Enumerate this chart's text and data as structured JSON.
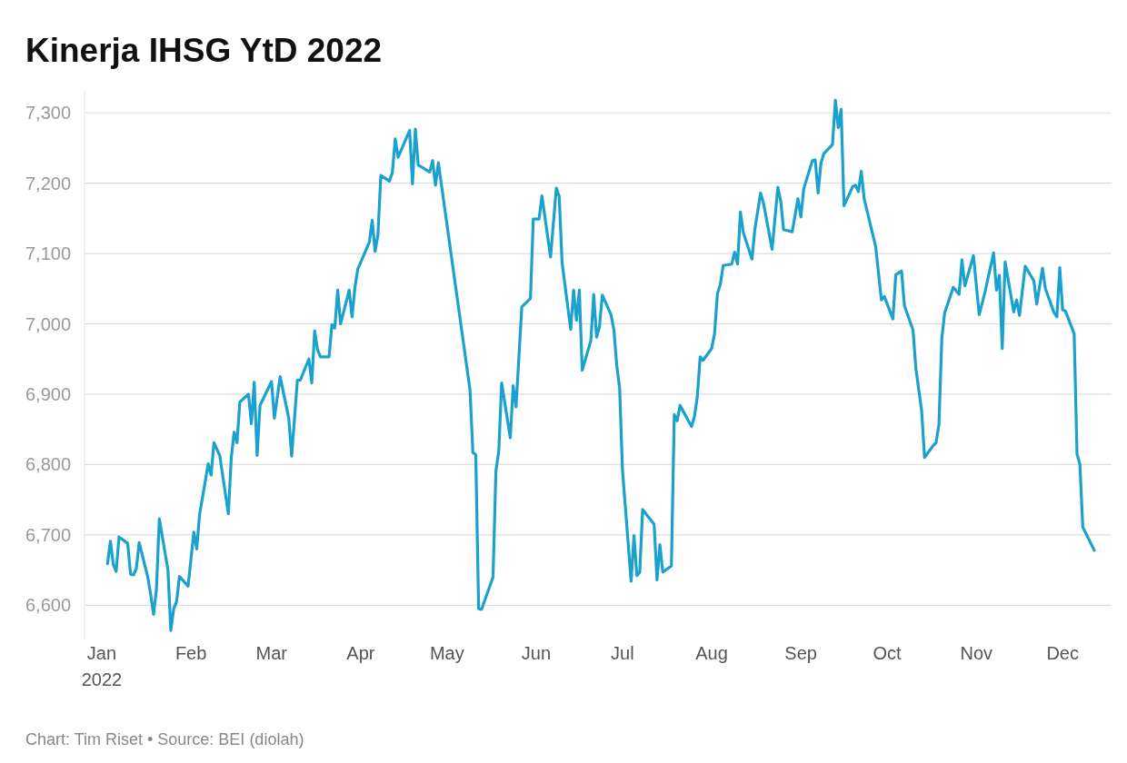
{
  "chart_data": {
    "type": "line",
    "title": "Kinerja IHSG YtD 2022",
    "annotations": [
      "Chart: Tim Riset • Source: BEI (diolah)"
    ],
    "x": [
      "2022-01-03",
      "2022-01-04",
      "2022-01-05",
      "2022-01-06",
      "2022-01-07",
      "2022-01-10",
      "2022-01-11",
      "2022-01-12",
      "2022-01-13",
      "2022-01-14",
      "2022-01-17",
      "2022-01-18",
      "2022-01-19",
      "2022-01-20",
      "2022-01-21",
      "2022-01-24",
      "2022-01-25",
      "2022-01-26",
      "2022-01-27",
      "2022-01-28",
      "2022-01-31",
      "2022-02-02",
      "2022-02-03",
      "2022-02-04",
      "2022-02-07",
      "2022-02-08",
      "2022-02-09",
      "2022-02-11",
      "2022-02-14",
      "2022-02-15",
      "2022-02-16",
      "2022-02-17",
      "2022-02-18",
      "2022-02-21",
      "2022-02-22",
      "2022-02-23",
      "2022-02-24",
      "2022-02-25",
      "2022-03-01",
      "2022-03-02",
      "2022-03-04",
      "2022-03-07",
      "2022-03-08",
      "2022-03-10",
      "2022-03-11",
      "2022-03-14",
      "2022-03-15",
      "2022-03-16",
      "2022-03-17",
      "2022-03-18",
      "2022-03-21",
      "2022-03-22",
      "2022-03-23",
      "2022-03-24",
      "2022-03-25",
      "2022-03-28",
      "2022-03-29",
      "2022-03-30",
      "2022-03-31",
      "2022-04-04",
      "2022-04-05",
      "2022-04-06",
      "2022-04-07",
      "2022-04-08",
      "2022-04-11",
      "2022-04-12",
      "2022-04-13",
      "2022-04-14",
      "2022-04-18",
      "2022-04-19",
      "2022-04-20",
      "2022-04-21",
      "2022-04-25",
      "2022-04-26",
      "2022-04-27",
      "2022-04-28",
      "2022-05-09",
      "2022-05-10",
      "2022-05-11",
      "2022-05-12",
      "2022-05-13",
      "2022-05-17",
      "2022-05-18",
      "2022-05-19",
      "2022-05-20",
      "2022-05-23",
      "2022-05-24",
      "2022-05-25",
      "2022-05-27",
      "2022-05-30",
      "2022-05-31",
      "2022-06-02",
      "2022-06-03",
      "2022-06-06",
      "2022-06-08",
      "2022-06-09",
      "2022-06-10",
      "2022-06-13",
      "2022-06-14",
      "2022-06-15",
      "2022-06-16",
      "2022-06-17",
      "2022-06-20",
      "2022-06-21",
      "2022-06-22",
      "2022-06-23",
      "2022-06-24",
      "2022-06-27",
      "2022-06-28",
      "2022-06-29",
      "2022-06-30",
      "2022-07-01",
      "2022-07-04",
      "2022-07-05",
      "2022-07-06",
      "2022-07-07",
      "2022-07-08",
      "2022-07-12",
      "2022-07-13",
      "2022-07-14",
      "2022-07-15",
      "2022-07-18",
      "2022-07-19",
      "2022-07-20",
      "2022-07-21",
      "2022-07-25",
      "2022-07-26",
      "2022-07-27",
      "2022-07-28",
      "2022-07-29",
      "2022-08-01",
      "2022-08-02",
      "2022-08-03",
      "2022-08-04",
      "2022-08-05",
      "2022-08-08",
      "2022-08-09",
      "2022-08-10",
      "2022-08-11",
      "2022-08-12",
      "2022-08-15",
      "2022-08-16",
      "2022-08-18",
      "2022-08-19",
      "2022-08-22",
      "2022-08-24",
      "2022-08-25",
      "2022-08-26",
      "2022-08-29",
      "2022-08-31",
      "2022-09-01",
      "2022-09-02",
      "2022-09-05",
      "2022-09-06",
      "2022-09-07",
      "2022-09-08",
      "2022-09-09",
      "2022-09-12",
      "2022-09-13",
      "2022-09-14",
      "2022-09-15",
      "2022-09-16",
      "2022-09-19",
      "2022-09-20",
      "2022-09-21",
      "2022-09-22",
      "2022-09-23",
      "2022-09-27",
      "2022-09-29",
      "2022-09-30",
      "2022-10-03",
      "2022-10-04",
      "2022-10-06",
      "2022-10-07",
      "2022-10-10",
      "2022-10-11",
      "2022-10-13",
      "2022-10-14",
      "2022-10-17",
      "2022-10-18",
      "2022-10-19",
      "2022-10-20",
      "2022-10-21",
      "2022-10-24",
      "2022-10-26",
      "2022-10-27",
      "2022-10-28",
      "2022-10-31",
      "2022-11-02",
      "2022-11-04",
      "2022-11-07",
      "2022-11-08",
      "2022-11-09",
      "2022-11-10",
      "2022-11-11",
      "2022-11-14",
      "2022-11-15",
      "2022-11-16",
      "2022-11-18",
      "2022-11-21",
      "2022-11-22",
      "2022-11-24",
      "2022-11-25",
      "2022-11-28",
      "2022-11-29",
      "2022-11-30",
      "2022-12-01",
      "2022-12-02",
      "2022-12-05",
      "2022-12-06",
      "2022-12-07",
      "2022-12-08",
      "2022-12-12"
    ],
    "series": [
      {
        "color": "#1ba1cd",
        "values": [
          6659,
          6691,
          6658,
          6648,
          6697,
          6688,
          6644,
          6643,
          6652,
          6689,
          6640,
          6615,
          6587,
          6623,
          6723,
          6650,
          6564,
          6595,
          6605,
          6641,
          6627,
          6704,
          6680,
          6729,
          6801,
          6785,
          6831,
          6813,
          6730,
          6809,
          6846,
          6831,
          6889,
          6900,
          6858,
          6917,
          6813,
          6884,
          6918,
          6866,
          6925,
          6866,
          6812,
          6920,
          6920,
          6950,
          6916,
          6990,
          6963,
          6953,
          6953,
          6999,
          6994,
          7048,
          7000,
          7048,
          7010,
          7052,
          7078,
          7116,
          7147,
          7103,
          7127,
          7211,
          7203,
          7215,
          7263,
          7237,
          7275,
          7199,
          7277,
          7226,
          7216,
          7232,
          7197,
          7229,
          6906,
          6817,
          6814,
          6595,
          6594,
          6640,
          6791,
          6819,
          6916,
          6838,
          6912,
          6882,
          7024,
          7036,
          7149,
          7149,
          7182,
          7095,
          7193,
          7181,
          7087,
          6992,
          7048,
          7005,
          7048,
          6934,
          6976,
          7042,
          6981,
          6996,
          7041,
          7013,
          6992,
          6941,
          6909,
          6792,
          6634,
          6699,
          6642,
          6647,
          6736,
          6715,
          6636,
          6686,
          6647,
          6656,
          6871,
          6862,
          6884,
          6854,
          6868,
          6896,
          6953,
          6948,
          6965,
          6986,
          7043,
          7056,
          7083,
          7085,
          7102,
          7085,
          7159,
          7130,
          7092,
          7134,
          7186,
          7172,
          7106,
          7194,
          7175,
          7134,
          7131,
          7178,
          7152,
          7192,
          7232,
          7233,
          7186,
          7229,
          7242,
          7255,
          7318,
          7279,
          7305,
          7168,
          7195,
          7197,
          7188,
          7217,
          7178,
          7110,
          7034,
          7039,
          7007,
          7070,
          7075,
          7026,
          6991,
          6936,
          6876,
          6810,
          6827,
          6831,
          6857,
          6979,
          7016,
          7052,
          7042,
          7091,
          7054,
          7097,
          7013,
          7045,
          7101,
          7048,
          7069,
          6965,
          7088,
          7017,
          7034,
          7012,
          7082,
          7061,
          7028,
          7079,
          7050,
          7016,
          7010,
          7080,
          7020,
          7018,
          6986,
          6815,
          6800,
          6711,
          6678
        ]
      }
    ],
    "xlim": [
      "2021-12-26",
      "2022-12-18"
    ],
    "ylim": [
      6550,
      7330
    ],
    "xticks": [
      {
        "value": "2022-01-01",
        "label": "Jan 2022"
      },
      {
        "value": "2022-02-01",
        "label": "Feb"
      },
      {
        "value": "2022-03-01",
        "label": "Mar"
      },
      {
        "value": "2022-04-01",
        "label": "Apr"
      },
      {
        "value": "2022-05-01",
        "label": "May"
      },
      {
        "value": "2022-06-01",
        "label": "Jun"
      },
      {
        "value": "2022-07-01",
        "label": "Jul"
      },
      {
        "value": "2022-08-01",
        "label": "Aug"
      },
      {
        "value": "2022-09-01",
        "label": "Sep"
      },
      {
        "value": "2022-10-01",
        "label": "Oct"
      },
      {
        "value": "2022-11-01",
        "label": "Nov"
      },
      {
        "value": "2022-12-01",
        "label": "Dec"
      }
    ],
    "yticks": [
      {
        "value": 6600,
        "label": "6,600"
      },
      {
        "value": 6700,
        "label": "6,700"
      },
      {
        "value": 6800,
        "label": "6,800"
      },
      {
        "value": 6900,
        "label": "6,900"
      },
      {
        "value": 7000,
        "label": "7,000"
      },
      {
        "value": 7100,
        "label": "7,100"
      },
      {
        "value": 7200,
        "label": "7,200"
      },
      {
        "value": 7300,
        "label": "7,300"
      }
    ],
    "grid": "y",
    "line_style": "solid",
    "marker": "none"
  }
}
